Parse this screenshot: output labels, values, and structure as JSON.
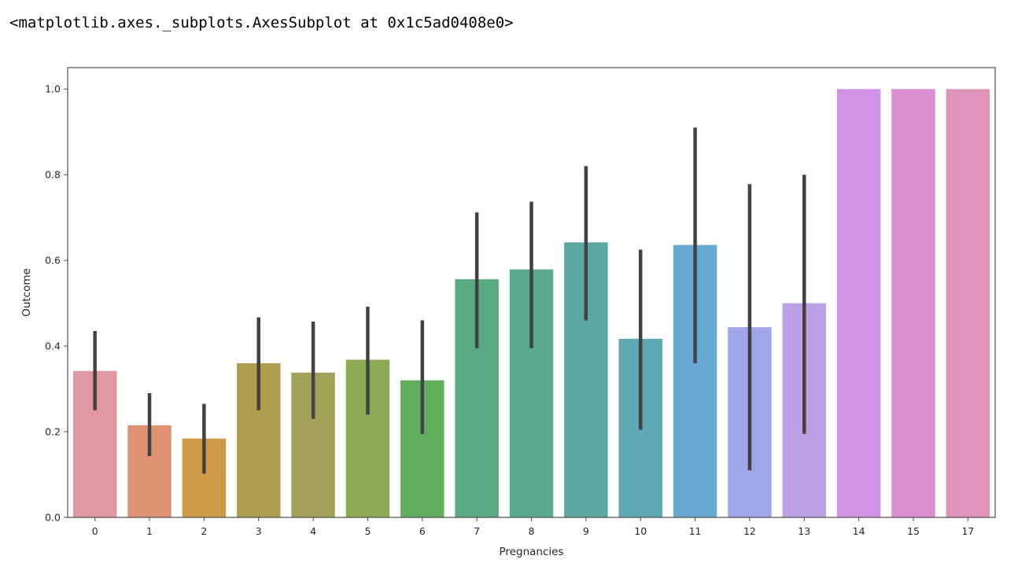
{
  "output_repr": "<matplotlib.axes._subplots.AxesSubplot at 0x1c5ad0408e0>",
  "chart_data": {
    "type": "bar",
    "title": "",
    "xlabel": "Pregnancies",
    "ylabel": "Outcome",
    "ylim": [
      0,
      1.05
    ],
    "yticks": [
      0.0,
      0.2,
      0.4,
      0.6,
      0.8,
      1.0
    ],
    "ytick_labels": [
      "0.0",
      "0.2",
      "0.4",
      "0.6",
      "0.8",
      "1.0"
    ],
    "grid": false,
    "legend": false,
    "categories": [
      "0",
      "1",
      "2",
      "3",
      "4",
      "5",
      "6",
      "7",
      "8",
      "9",
      "10",
      "11",
      "12",
      "13",
      "14",
      "15",
      "17"
    ],
    "values": [
      0.342,
      0.215,
      0.184,
      0.36,
      0.338,
      0.368,
      0.32,
      0.556,
      0.579,
      0.642,
      0.417,
      0.636,
      0.444,
      0.5,
      1.0,
      1.0,
      1.0
    ],
    "ci_low": [
      0.25,
      0.143,
      0.102,
      0.25,
      0.23,
      0.24,
      0.195,
      0.395,
      0.395,
      0.46,
      0.205,
      0.36,
      0.11,
      0.195,
      1.0,
      1.0,
      1.0
    ],
    "ci_high": [
      0.435,
      0.29,
      0.265,
      0.467,
      0.457,
      0.492,
      0.46,
      0.712,
      0.737,
      0.82,
      0.625,
      0.91,
      0.778,
      0.8,
      1.0,
      1.0,
      1.0
    ],
    "colors": [
      "#e1979f",
      "#df9272",
      "#ce9a48",
      "#b19d4e",
      "#a2a15a",
      "#8ba953",
      "#60ad5d",
      "#5aab82",
      "#5aaa90",
      "#5ba8a1",
      "#5ea8b4",
      "#67a8d5",
      "#9ea6e7",
      "#bba0e6",
      "#d092e4",
      "#db8fd2",
      "#df93b9"
    ],
    "errorbar_color": "#424242"
  }
}
